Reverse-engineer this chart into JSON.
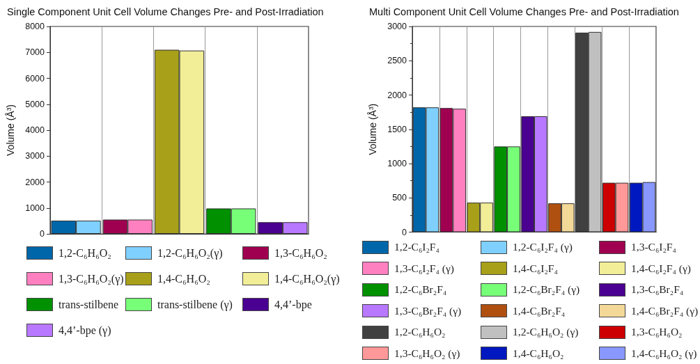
{
  "chart_data": [
    {
      "type": "bar",
      "title": "Single Component Unit Cell Volume Changes Pre- and Post-Irradiation",
      "ylabel": "Volume (Å³)",
      "categories": [
        null,
        null,
        null,
        null,
        null
      ],
      "ylim": [
        0,
        8000
      ],
      "yticks": [
        0,
        1000,
        2000,
        3000,
        4000,
        5000,
        6000,
        7000,
        8000
      ],
      "grid": "x",
      "legend": "bottom",
      "tick_labels": "y",
      "series": [
        {
          "name": "1,2-C₆H₆O₂",
          "color": "#0066aa",
          "values": [
            510,
            null,
            null,
            null,
            null
          ]
        },
        {
          "name": "1,2-C₆H₆O₂(γ)",
          "color": "#80d0ff",
          "values": [
            510,
            null,
            null,
            null,
            null
          ]
        },
        {
          "name": "1,3-C₆H₆O₂",
          "color": "#a00050",
          "values": [
            null,
            550,
            null,
            null,
            null
          ]
        },
        {
          "name": "1,3-C₆H₆O₂(γ)",
          "color": "#ff80c0",
          "values": [
            null,
            550,
            null,
            null,
            null
          ]
        },
        {
          "name": "1,4-C₆H₆O₂",
          "color": "#a8a018",
          "values": [
            null,
            null,
            7100,
            null,
            null
          ]
        },
        {
          "name": "1,4-C₆H₆O₂(γ)",
          "color": "#f2ee98",
          "values": [
            null,
            null,
            7070,
            null,
            null
          ]
        },
        {
          "name": "trans-stilbene",
          "color": "#009000",
          "values": [
            null,
            null,
            null,
            980,
            null
          ]
        },
        {
          "name": "trans-stilbene (γ)",
          "color": "#78ff78",
          "values": [
            null,
            null,
            null,
            980,
            null
          ]
        },
        {
          "name": "4,4’-bpe",
          "color": "#4a0090",
          "values": [
            null,
            null,
            null,
            null,
            450
          ]
        },
        {
          "name": "4,4’-bpe (γ)",
          "color": "#b878ff",
          "values": [
            null,
            null,
            null,
            null,
            450
          ]
        }
      ]
    },
    {
      "type": "bar",
      "title": "Multi Component Unit Cell Volume Changes Pre- and Post-Irradiation",
      "ylabel": "Volume (Å³)",
      "categories": [
        null,
        null,
        null,
        null,
        null,
        null,
        null,
        null,
        null
      ],
      "ylim": [
        0,
        3000
      ],
      "yticks": [
        0,
        500,
        1000,
        1500,
        2000,
        2500,
        3000
      ],
      "grid": "x",
      "legend": "bottom",
      "tick_labels": "y",
      "series": [
        {
          "name": "1,2-C₆I₂F₄",
          "color": "#0066aa",
          "values": [
            1820,
            null,
            null,
            null,
            null,
            null,
            null,
            null,
            null
          ]
        },
        {
          "name": "1,2-C₆I₂F₄ (γ)",
          "color": "#80d0ff",
          "values": [
            1820,
            null,
            null,
            null,
            null,
            null,
            null,
            null,
            null
          ]
        },
        {
          "name": "1,3-C₆I₂F₄",
          "color": "#a00050",
          "values": [
            null,
            1810,
            null,
            null,
            null,
            null,
            null,
            null,
            null
          ]
        },
        {
          "name": "1,3-C₆I₂F₄ (γ)",
          "color": "#ff80c0",
          "values": [
            null,
            1800,
            null,
            null,
            null,
            null,
            null,
            null,
            null
          ]
        },
        {
          "name": "1,4-C₆I₂F₄",
          "color": "#a8a018",
          "values": [
            null,
            null,
            430,
            null,
            null,
            null,
            null,
            null,
            null
          ]
        },
        {
          "name": "1,4-C₆I₂F₄ (γ)",
          "color": "#f2ee98",
          "values": [
            null,
            null,
            430,
            null,
            null,
            null,
            null,
            null,
            null
          ]
        },
        {
          "name": "1,2-C₆Br₂F₄",
          "color": "#009000",
          "values": [
            null,
            null,
            null,
            1250,
            null,
            null,
            null,
            null,
            null
          ]
        },
        {
          "name": "1,2-C₆Br₂F₄ (γ)",
          "color": "#78ff78",
          "values": [
            null,
            null,
            null,
            1250,
            null,
            null,
            null,
            null,
            null
          ]
        },
        {
          "name": "1,3-C₆Br₂F₄",
          "color": "#4a0090",
          "values": [
            null,
            null,
            null,
            null,
            1690,
            null,
            null,
            null,
            null
          ]
        },
        {
          "name": "1,3-C₆Br₂F₄ (γ)",
          "color": "#b878ff",
          "values": [
            null,
            null,
            null,
            null,
            1690,
            null,
            null,
            null,
            null
          ]
        },
        {
          "name": "1,4-C₆Br₂F₄",
          "color": "#b05010",
          "values": [
            null,
            null,
            null,
            null,
            null,
            420,
            null,
            null,
            null
          ]
        },
        {
          "name": "1,4-C₆Br₂F₄ (γ)",
          "color": "#f4d898",
          "values": [
            null,
            null,
            null,
            null,
            null,
            420,
            null,
            null,
            null
          ]
        },
        {
          "name": "1,2-C₆H₆O₂",
          "color": "#404040",
          "values": [
            null,
            null,
            null,
            null,
            null,
            null,
            2910,
            null,
            null
          ]
        },
        {
          "name": "1,2-C₆H₆O₂ (γ)",
          "color": "#c0c0c0",
          "values": [
            null,
            null,
            null,
            null,
            null,
            null,
            2920,
            null,
            null
          ]
        },
        {
          "name": "1,3-C₆H₆O₂",
          "color": "#cc0000",
          "values": [
            null,
            null,
            null,
            null,
            null,
            null,
            null,
            720,
            null
          ]
        },
        {
          "name": "1,3-C₆H₆O₂ (γ)",
          "color": "#ff9898",
          "values": [
            null,
            null,
            null,
            null,
            null,
            null,
            null,
            720,
            null
          ]
        },
        {
          "name": "1,4-C₆H₆O₂",
          "color": "#0018c0",
          "values": [
            null,
            null,
            null,
            null,
            null,
            null,
            null,
            null,
            720
          ]
        },
        {
          "name": "1,4-C₆H₆O₂ (γ)",
          "color": "#8898ff",
          "values": [
            null,
            null,
            null,
            null,
            null,
            null,
            null,
            null,
            730
          ]
        }
      ]
    }
  ]
}
